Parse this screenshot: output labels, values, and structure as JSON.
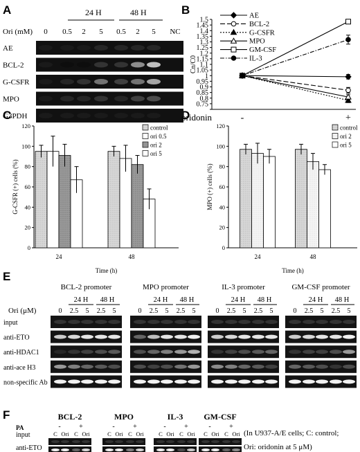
{
  "panels": {
    "A": {
      "letter": "A",
      "ori_label": "Ori (mM)",
      "time_groups": [
        "24 H",
        "48 H"
      ],
      "lane_labels": [
        "0",
        "0.5",
        "2",
        "5",
        "0.5",
        "2",
        "5",
        "NC"
      ],
      "genes": [
        "AE",
        "BCL-2",
        "G-CSFR",
        "MPO",
        "G3PDH"
      ],
      "intensities": [
        [
          0.9,
          0.9,
          0.9,
          0.85,
          0.85,
          0.85,
          0.85,
          0
        ],
        [
          0.9,
          0.95,
          0.95,
          0.8,
          0.8,
          0.45,
          0.25,
          0
        ],
        [
          0.9,
          0.85,
          0.8,
          0.55,
          0.75,
          0.55,
          0.35,
          0
        ],
        [
          0.9,
          0.85,
          0.85,
          0.8,
          0.85,
          0.75,
          0.7,
          0
        ],
        [
          0.9,
          0.9,
          0.9,
          0.9,
          0.9,
          0.9,
          0.9,
          0
        ]
      ]
    },
    "B": {
      "letter": "B"
    },
    "C": {
      "letter": "C"
    },
    "D": {
      "letter": "D"
    },
    "E": {
      "letter": "E",
      "ori_label": "Ori (μM)",
      "promoters": [
        "BCL-2 promoter",
        "MPO promoter",
        "IL-3 promoter",
        "GM-CSF promoter"
      ],
      "time_groups": [
        "24 H",
        "48 H"
      ],
      "lane_labels": [
        "0",
        "2.5",
        "5",
        "2.5",
        "5"
      ],
      "rows": [
        "input",
        "anti-ETO",
        "anti-HDAC1",
        "anti-ace H3",
        "non-specific Ab"
      ],
      "intensities": [
        [
          [
            0.8,
            0.8,
            0.8,
            0.8,
            0.8
          ],
          [
            0.2,
            0.15,
            0.1,
            0.1,
            0.1
          ],
          [
            0.85,
            0.8,
            0.75,
            0.7,
            0.65
          ],
          [
            0.4,
            0.5,
            0.6,
            0.65,
            0.7
          ],
          [
            0.05,
            0.05,
            0.05,
            0.05,
            0.05
          ]
        ],
        [
          [
            0.8,
            0.8,
            0.8,
            0.8,
            0.8
          ],
          [
            0.6,
            0.25,
            0.1,
            0.1,
            0.05
          ],
          [
            0.7,
            0.6,
            0.5,
            0.4,
            0.3
          ],
          [
            0.7,
            0.75,
            0.7,
            0.55,
            0.4
          ],
          [
            0.05,
            0.05,
            0.05,
            0.05,
            0.05
          ]
        ],
        [
          [
            0.8,
            0.8,
            0.8,
            0.8,
            0.8
          ],
          [
            0.2,
            0.15,
            0.1,
            0.1,
            0.1
          ],
          [
            0.8,
            0.75,
            0.7,
            0.65,
            0.6
          ],
          [
            0.45,
            0.5,
            0.6,
            0.65,
            0.75
          ],
          [
            0.05,
            0.05,
            0.05,
            0.05,
            0.05
          ]
        ],
        [
          [
            0.8,
            0.8,
            0.8,
            0.8,
            0.8
          ],
          [
            0.2,
            0.15,
            0.1,
            0.1,
            0.05
          ],
          [
            0.8,
            0.75,
            0.75,
            0.7,
            0.4
          ],
          [
            0.6,
            0.65,
            0.7,
            0.8,
            0.7
          ],
          [
            0.05,
            0.05,
            0.05,
            0.05,
            0.05
          ]
        ]
      ]
    },
    "F": {
      "letter": "F",
      "pa_label": "PA",
      "genes": [
        "BCL-2",
        "MPO",
        "IL-3",
        "GM-CSF"
      ],
      "pa_signs": [
        "-",
        "+"
      ],
      "lane_labels": [
        "C",
        "Ori",
        "C",
        "Ori"
      ],
      "rows": [
        "input",
        "anti-ETO"
      ],
      "intensities": [
        [
          [
            0.8,
            0.8,
            0.8,
            0.8
          ],
          [
            0.05,
            0.05,
            0.6,
            0.15
          ]
        ],
        [
          [
            0.8,
            0.8,
            0.8,
            0.8
          ],
          [
            0.05,
            0.05,
            0.5,
            0.15
          ]
        ],
        [
          [
            0.8,
            0.8,
            0.8,
            0.8
          ],
          [
            0.05,
            0.05,
            0.7,
            0.2
          ]
        ],
        [
          [
            0.8,
            0.8,
            0.8,
            0.8
          ],
          [
            0.05,
            0.05,
            0.6,
            0.45
          ]
        ]
      ],
      "note_line1": "(In U937-A/E cells; C: control;",
      "note_line2": "Ori: oridonin at 5 μM)"
    }
  },
  "chart_data": [
    {
      "panel": "B",
      "type": "line",
      "ylabel": "Cn/C0",
      "xlabel": "oridonin",
      "categories": [
        "-",
        "+"
      ],
      "ylim": [
        0.7,
        1.5
      ],
      "yticks": [
        0.7,
        0.75,
        0.8,
        0.85,
        0.9,
        0.95,
        1,
        1.05,
        1.1,
        1.15,
        1.2,
        1.25,
        1.3,
        1.35,
        1.4,
        1.45,
        1.5
      ],
      "legend_position": "top-left",
      "series": [
        {
          "name": "AE",
          "values": [
            1.0,
            0.99
          ],
          "err": [
            0.015,
            0.02
          ],
          "marker": "diamond",
          "dash": "solid"
        },
        {
          "name": "BCL-2",
          "values": [
            1.0,
            0.87
          ],
          "err": [
            0.015,
            0.025
          ],
          "marker": "circle-open",
          "dash": "longdash"
        },
        {
          "name": "G-CSFR",
          "values": [
            1.0,
            0.78
          ],
          "err": [
            0.015,
            0.02
          ],
          "marker": "triangle",
          "dash": "dot"
        },
        {
          "name": "MPO",
          "values": [
            1.0,
            0.81
          ],
          "err": [
            0.015,
            0.02
          ],
          "marker": "triangle-open",
          "dash": "solid"
        },
        {
          "name": "GM-CSF",
          "values": [
            1.0,
            1.48
          ],
          "err": [
            0.015,
            0.02
          ],
          "marker": "square-open",
          "dash": "solid"
        },
        {
          "name": "IL-3",
          "values": [
            1.0,
            1.32
          ],
          "err": [
            0.015,
            0.04
          ],
          "marker": "circle",
          "dash": "dashdot"
        }
      ]
    },
    {
      "panel": "C",
      "type": "bar",
      "ylabel": "G-CSFR (+) cells (%)",
      "xlabel": "Time (h)",
      "categories": [
        "24",
        "48"
      ],
      "ylim": [
        0,
        120
      ],
      "yticks": [
        0,
        20,
        40,
        60,
        80,
        100,
        120
      ],
      "legend_position": "top-right",
      "series": [
        {
          "name": "control",
          "values": [
            95,
            95
          ],
          "err": [
            6,
            5
          ],
          "color": "#d4d4d4"
        },
        {
          "name": "ori 0.5",
          "values": [
            95,
            88
          ],
          "err": [
            15,
            13
          ],
          "color": "#ffffff"
        },
        {
          "name": "ori 2",
          "values": [
            91,
            82
          ],
          "err": [
            11,
            9
          ],
          "color": "#9a9a9a"
        },
        {
          "name": "ori 5",
          "values": [
            67,
            48
          ],
          "err": [
            13,
            10
          ],
          "color": "#ffffff"
        }
      ]
    },
    {
      "panel": "D",
      "type": "bar",
      "ylabel": "MPO (+) cells (%)",
      "xlabel": "Time (h)",
      "categories": [
        "24",
        "48"
      ],
      "ylim": [
        0,
        120
      ],
      "yticks": [
        0,
        20,
        40,
        60,
        80,
        100,
        120
      ],
      "legend_position": "top-right",
      "series": [
        {
          "name": "control",
          "values": [
            97,
            97
          ],
          "err": [
            5,
            5
          ],
          "color": "#d4d4d4"
        },
        {
          "name": "ori 2",
          "values": [
            93,
            85
          ],
          "err": [
            10,
            8
          ],
          "color": "#f2f2f2"
        },
        {
          "name": "ori 5",
          "values": [
            90,
            77
          ],
          "err": [
            7,
            5
          ],
          "color": "#ffffff"
        }
      ]
    }
  ]
}
